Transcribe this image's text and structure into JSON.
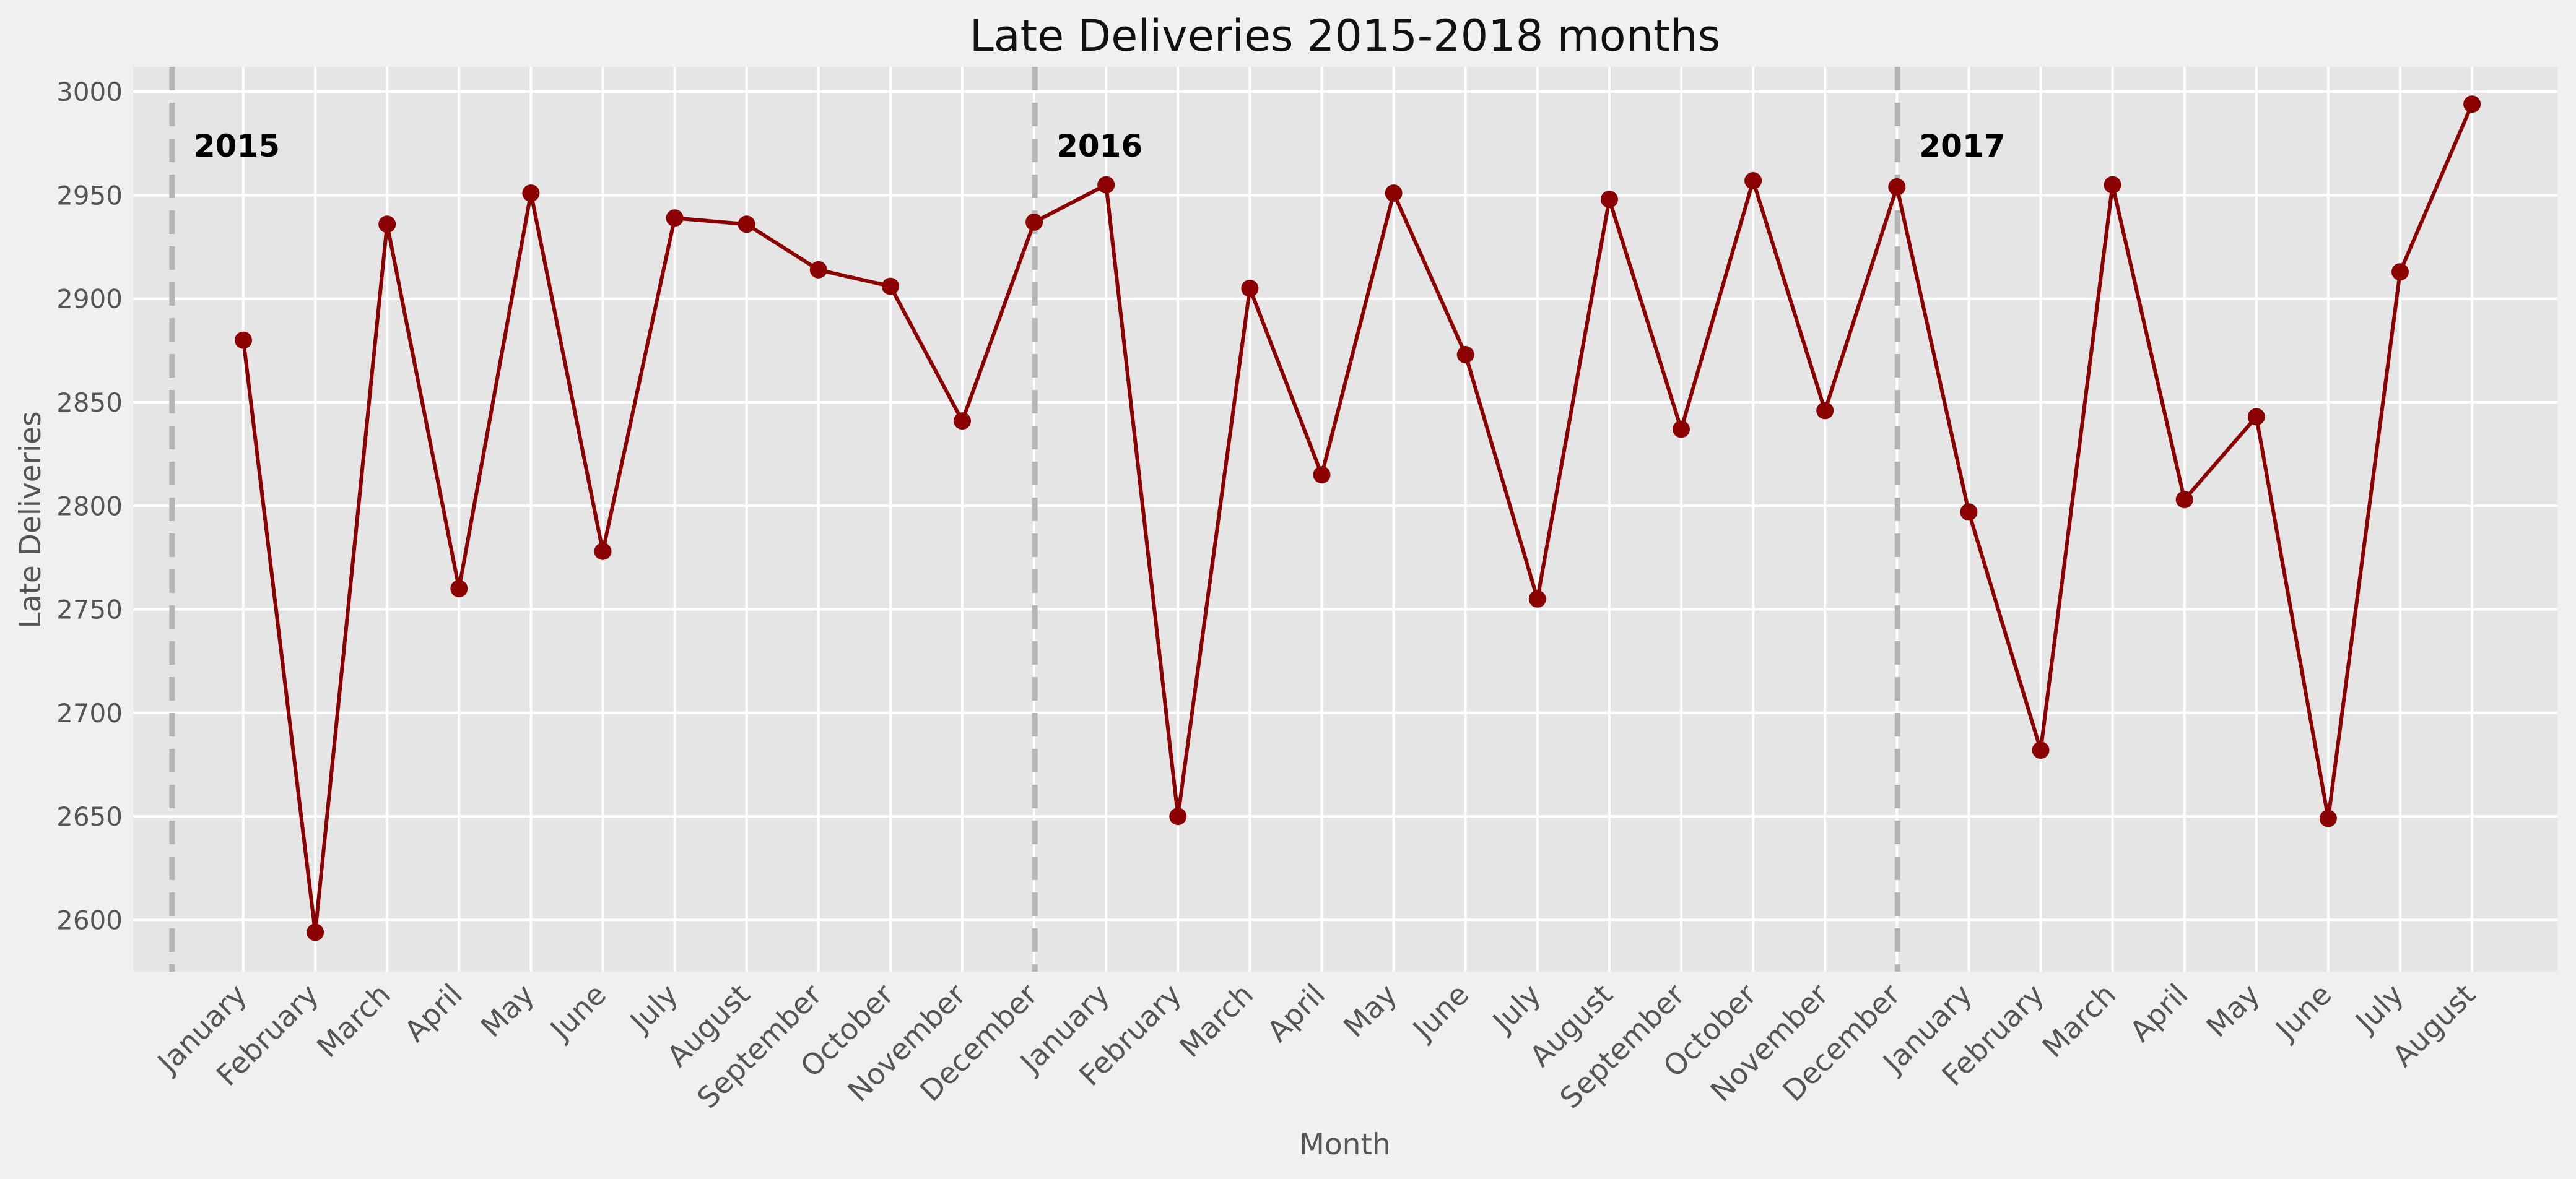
{
  "chart_data": {
    "type": "line",
    "title": "Late Deliveries 2015-2018 months",
    "xlabel": "Month",
    "ylabel": "Late Deliveries",
    "ylim": [
      2575,
      3012
    ],
    "yticks": [
      2600,
      2650,
      2700,
      2750,
      2800,
      2850,
      2900,
      2950,
      3000
    ],
    "grid": true,
    "categories": [
      "January",
      "February",
      "March",
      "April",
      "May",
      "June",
      "July",
      "August",
      "September",
      "October",
      "November",
      "December",
      "January",
      "February",
      "March",
      "April",
      "May",
      "June",
      "July",
      "August",
      "September",
      "October",
      "November",
      "December",
      "January",
      "February",
      "March",
      "April",
      "May",
      "June",
      "July",
      "August"
    ],
    "series": [
      {
        "values": [
          2880,
          2594,
          2936,
          2760,
          2951,
          2778,
          2939,
          2936,
          2914,
          2906,
          2841,
          2937,
          2955,
          2650,
          2905,
          2815,
          2951,
          2873,
          2755,
          2948,
          2837,
          2957,
          2846,
          2954,
          2797,
          2682,
          2955,
          2803,
          2843,
          2649,
          2913,
          2994
        ],
        "color": "#8b0000"
      }
    ],
    "annotations": [
      {
        "label": "2015",
        "x_index": -1
      },
      {
        "label": "2016",
        "x_index": 11
      },
      {
        "label": "2017",
        "x_index": 23
      }
    ],
    "colors": {
      "line": "#8b0000",
      "vline": "#b5b5b5",
      "plot_bg": "#e5e5e5",
      "figure_bg": "#f0f0f0",
      "grid": "#ffffff"
    }
  }
}
